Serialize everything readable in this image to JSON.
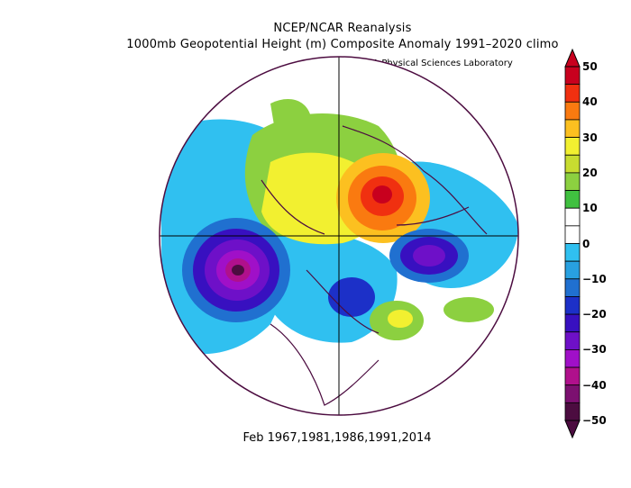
{
  "header": {
    "title_line1": "NCEP/NCAR Reanalysis",
    "title_line2": "1000mb Geopotential Height (m) Composite Anomaly 1991–2020 climo",
    "credit": "NOAA Physical Sciences Laboratory"
  },
  "footer": {
    "dates": "Feb 1967,1981,1986,1991,2014"
  },
  "colorbar": {
    "labels": [
      "50",
      "40",
      "30",
      "20",
      "10",
      "0",
      "−10",
      "−20",
      "−30",
      "−40",
      "−50"
    ],
    "colors": [
      "#c8001e",
      "#f03010",
      "#fa7a10",
      "#fcc020",
      "#f2f030",
      "#c8dc30",
      "#8cd040",
      "#40c040",
      "#ffffff",
      "#ffffff",
      "#30c0f0",
      "#28a0e0",
      "#2070d0",
      "#1c30c8",
      "#3810c0",
      "#6e10c8",
      "#a010c8",
      "#b0108c",
      "#7c1070",
      "#4c0c40"
    ]
  },
  "map_regions": [
    "north-pacific-low",
    "siberia-high",
    "north-atlantic-low",
    "alaska-positive",
    "west-atlantic-positive"
  ]
}
